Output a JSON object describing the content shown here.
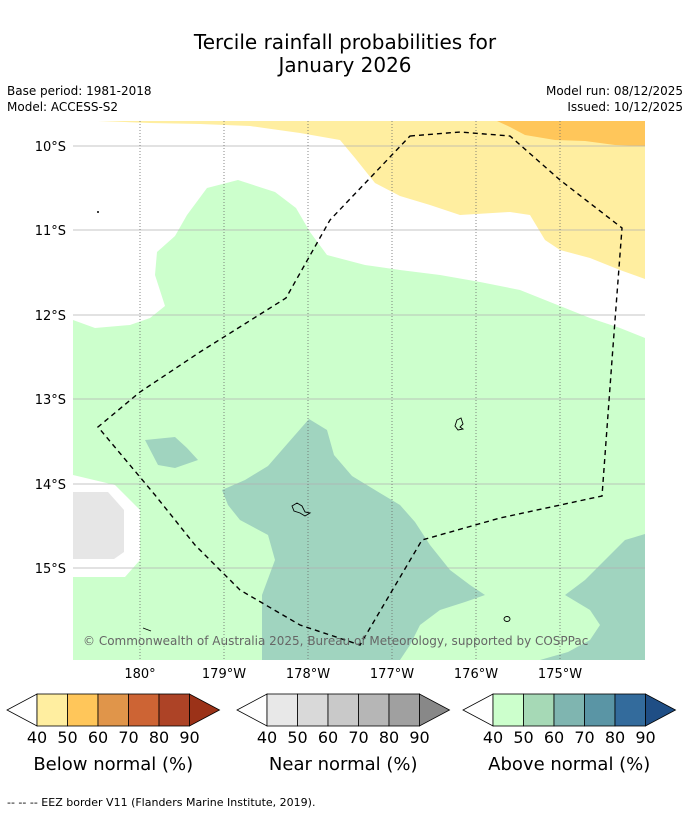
{
  "title_line1": "Tercile rainfall probabilities for",
  "title_line2": "January 2026",
  "meta": {
    "base_period": "Base period: 1981-2018",
    "model": "Model: ACCESS-S2",
    "model_run": "Model run: 08/12/2025",
    "issued": "Issued: 10/12/2025"
  },
  "map": {
    "lat_labels": [
      "10°S",
      "11°S",
      "12°S",
      "13°S",
      "14°S",
      "15°S"
    ],
    "lon_labels": [
      "180°",
      "179°W",
      "178°W",
      "177°W",
      "176°W",
      "175°W"
    ],
    "copyright": "© Commonwealth of Australia 2025, Bureau of Meteorology, supported by COSPPac"
  },
  "colorbars": [
    {
      "title": "Below normal (%)",
      "ticks": [
        "40",
        "50",
        "60",
        "70",
        "80",
        "90"
      ],
      "colors": [
        "#ffeea0",
        "#ffc65a",
        "#e0954a",
        "#cd6434",
        "#ad4326",
        "#9b3218"
      ]
    },
    {
      "title": "Near normal (%)",
      "ticks": [
        "40",
        "50",
        "60",
        "70",
        "80",
        "90"
      ],
      "colors": [
        "#e8e8e8",
        "#d9d9d9",
        "#c9c9c9",
        "#b6b6b6",
        "#a0a0a0",
        "#888888"
      ]
    },
    {
      "title": "Above normal (%)",
      "ticks": [
        "40",
        "50",
        "60",
        "70",
        "80",
        "90"
      ],
      "colors": [
        "#ccffcc",
        "#a6d9b6",
        "#7fb5b0",
        "#5a95a5",
        "#336b9c",
        "#1f4e85"
      ]
    }
  ],
  "footnote": "--  --  -- EEZ border V11 (Flanders Marine Institute, 2019).",
  "colors": {
    "above_40_50": "#ccffcc",
    "above_50_60": "#a0d4bf",
    "below_40_50": "#ffeea0",
    "below_50_60": "#ffc65a",
    "near_40_50": "#e6e6e6"
  }
}
